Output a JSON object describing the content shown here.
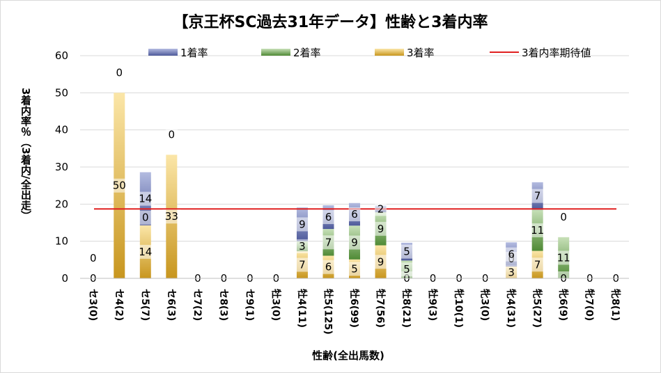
{
  "chart_data": {
    "type": "bar",
    "stacked": true,
    "title": "【京王杯SC過去31年データ】性齢と3着内率",
    "xlabel": "性齢(全出馬数)",
    "ylabel": "3着内率％（3着内/全出走）",
    "ylim": [
      0,
      60
    ],
    "yticks": [
      "0",
      "10",
      "20",
      "30",
      "40",
      "50",
      "60"
    ],
    "ytick_values": [
      0,
      10,
      20,
      30,
      40,
      50,
      60
    ],
    "categories": [
      "セ3(0)",
      "セ4(2)",
      "セ5(7)",
      "セ6(3)",
      "セ7(2)",
      "セ8(3)",
      "セ9(1)",
      "牡3(0)",
      "牡4(11)",
      "牡5(125)",
      "牡6(99)",
      "牡7(56)",
      "牡8(21)",
      "牡9(3)",
      "牝10(1)",
      "牝3(0)",
      "牝4(31)",
      "牝5(27)",
      "牝6(9)",
      "牝7(0)",
      "牝8(1)"
    ],
    "series": [
      {
        "name": "1着率",
        "color": "#6f7dba",
        "values": [
          0,
          0,
          14.3,
          0,
          0,
          0,
          0,
          0,
          9.1,
          6.4,
          6.1,
          1.8,
          4.8,
          0,
          0,
          0,
          6.5,
          7.4,
          0,
          0,
          0
        ],
        "labels": [
          "0",
          "0",
          "14",
          "0",
          "",
          "",
          "",
          "",
          "9",
          "6",
          "6",
          "2",
          "5",
          "",
          "",
          "",
          "6",
          "7",
          "0",
          "",
          ""
        ]
      },
      {
        "name": "2着率",
        "color": "#6aa84f",
        "values": [
          0,
          0,
          0,
          0,
          0,
          0,
          0,
          0,
          2.7,
          7.2,
          9.1,
          8.9,
          4.8,
          0,
          0,
          0,
          0,
          11.1,
          11.1,
          0,
          0
        ],
        "labels": [
          "",
          "",
          "0",
          "",
          "",
          "",
          "",
          "",
          "3",
          "7",
          "9",
          "9",
          "5",
          "",
          "",
          "",
          "0",
          "11",
          "11",
          "",
          ""
        ]
      },
      {
        "name": "3着率",
        "color": "#e8b84a",
        "values": [
          0,
          50,
          14.3,
          33.3,
          0,
          0,
          0,
          0,
          7.3,
          6.1,
          5.1,
          8.9,
          0,
          0,
          0,
          0,
          3.2,
          7.4,
          0,
          0,
          0
        ],
        "labels": [
          "0",
          "50",
          "14",
          "33",
          "0",
          "0",
          "0",
          "0",
          "7",
          "6",
          "5",
          "9",
          "0",
          "0",
          "0",
          "0",
          "3",
          "7",
          "0",
          "0",
          "0"
        ]
      }
    ],
    "line": {
      "name": "3着内率期待値",
      "color": "#e02020",
      "value": 18.7
    },
    "legend_position": "top",
    "grid": true
  }
}
